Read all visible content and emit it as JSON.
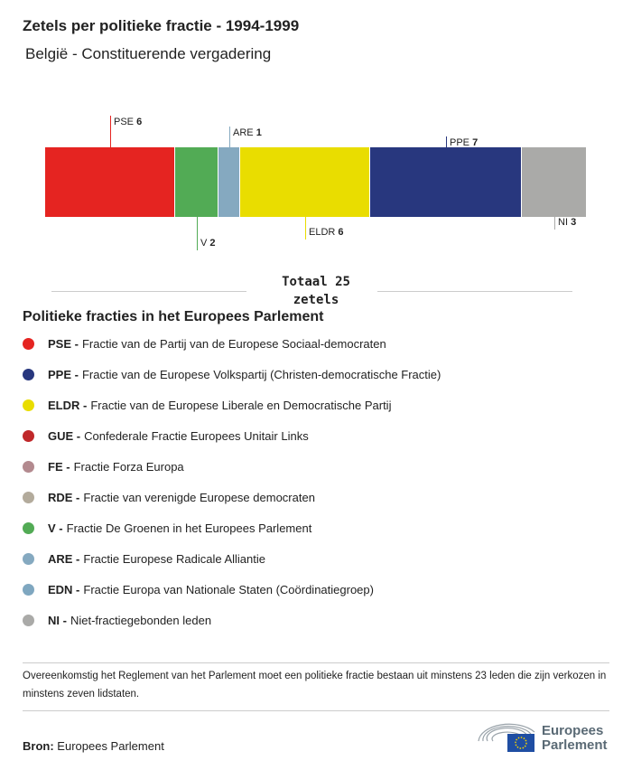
{
  "title": "Zetels per politieke fractie - 1994-1999",
  "subtitle": "België - Constituerende vergadering",
  "chart_data": {
    "type": "stacked-bar",
    "total_label": "Totaal 25 zetels",
    "segments": [
      {
        "name": "PSE",
        "value": 6,
        "color": "#e52421",
        "label_pos": "top"
      },
      {
        "name": "V",
        "value": 2,
        "color": "#52ab55",
        "label_pos": "bottom"
      },
      {
        "name": "ARE",
        "value": 1,
        "color": "#85a9c0",
        "label_pos": "top"
      },
      {
        "name": "ELDR",
        "value": 6,
        "color": "#e9dd00",
        "label_pos": "bottom"
      },
      {
        "name": "PPE",
        "value": 7,
        "color": "#28377e",
        "label_pos": "top"
      },
      {
        "name": "NI",
        "value": 3,
        "color": "#aaaaa8",
        "label_pos": "bottom"
      }
    ]
  },
  "legend": {
    "title": "Politieke fracties in het Europees Parlement",
    "items": [
      {
        "abbr": "PSE -",
        "text": "Fractie van de Partij van de Europese Sociaal-democraten",
        "color": "#e52421"
      },
      {
        "abbr": "PPE -",
        "text": "Fractie van de Europese Volkspartij (Christen-democratische Fractie)",
        "color": "#28377e"
      },
      {
        "abbr": "ELDR -",
        "text": "Fractie van de Europese Liberale en Democratische Partij",
        "color": "#e9dd00"
      },
      {
        "abbr": "GUE -",
        "text": "Confederale Fractie Europees Unitair Links",
        "color": "#c0282a"
      },
      {
        "abbr": "FE -",
        "text": "Fractie Forza Europa",
        "color": "#b38a8f"
      },
      {
        "abbr": "RDE -",
        "text": "Fractie van verenigde Europese democraten",
        "color": "#b3ab9c"
      },
      {
        "abbr": "V -",
        "text": "Fractie De Groenen in het Europees Parlement",
        "color": "#52ab55"
      },
      {
        "abbr": "ARE -",
        "text": "Fractie Europese Radicale Alliantie",
        "color": "#85a9c0"
      },
      {
        "abbr": "EDN -",
        "text": "Fractie Europa van Nationale Staten (Coördinatiegroep)",
        "color": "#7fa7c0"
      },
      {
        "abbr": "NI -",
        "text": "Niet-fractiegebonden leden",
        "color": "#aaaaa8"
      }
    ]
  },
  "note": "Overeenkomstig het Reglement van het Parlement moet een politieke fractie bestaan uit minstens 23 leden die zijn verkozen in minstens zeven lidstaten.",
  "source": {
    "label": "Bron:",
    "value": "Europees Parlement"
  },
  "logo": {
    "line1": "Europees",
    "line2": "Parlement"
  }
}
